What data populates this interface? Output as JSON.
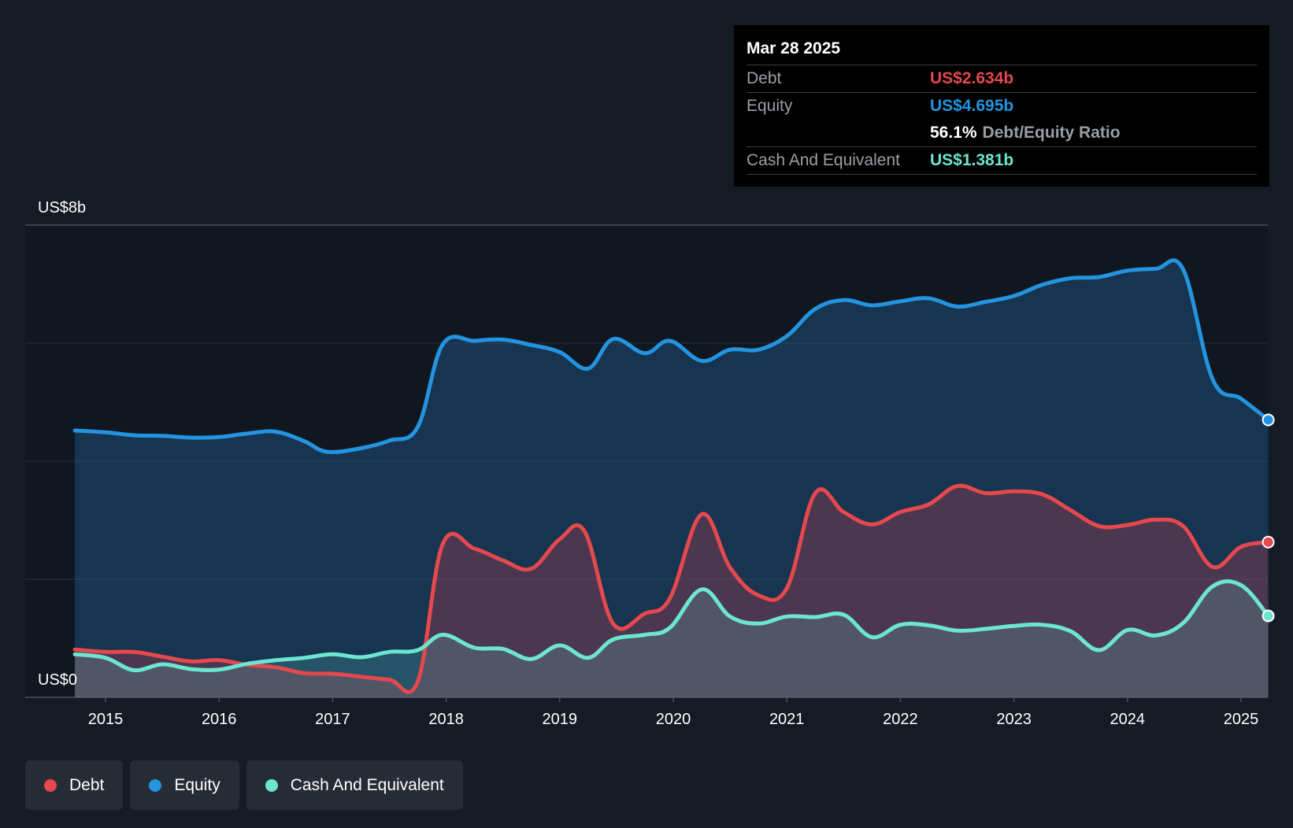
{
  "tooltip": {
    "date": "Mar 28 2025",
    "rows": [
      {
        "label": "Debt",
        "value": "US$2.634b",
        "color": "#e5484d"
      },
      {
        "label": "Equity",
        "value": "US$4.695b",
        "color": "#2394df"
      },
      {
        "ratio_value": "56.1%",
        "ratio_label": "Debt/Equity Ratio"
      },
      {
        "label": "Cash And Equivalent",
        "value": "US$1.381b",
        "color": "#6ce5d1"
      }
    ]
  },
  "legend": [
    {
      "label": "Debt",
      "color": "#e5484d"
    },
    {
      "label": "Equity",
      "color": "#2394df"
    },
    {
      "label": "Cash And Equivalent",
      "color": "#6ce5d1"
    }
  ],
  "chart_data": {
    "type": "area",
    "title": "",
    "ylabel_top": "US$8b",
    "ylabel_bottom": "US$0",
    "ylim": [
      0,
      8
    ],
    "xlim": [
      2014.72,
      2025.24
    ],
    "x_ticks": [
      "2015",
      "2016",
      "2017",
      "2018",
      "2019",
      "2020",
      "2021",
      "2022",
      "2023",
      "2024",
      "2025"
    ],
    "series": [
      {
        "name": "Equity",
        "color": "#2394df",
        "x": [
          2014.73,
          2015.0,
          2015.25,
          2015.5,
          2015.75,
          2016.0,
          2016.25,
          2016.5,
          2016.75,
          2016.95,
          2017.25,
          2017.5,
          2017.75,
          2017.97,
          2018.25,
          2018.5,
          2018.75,
          2019.0,
          2019.25,
          2019.47,
          2019.75,
          2019.97,
          2020.25,
          2020.5,
          2020.75,
          2021.0,
          2021.25,
          2021.5,
          2021.75,
          2022.0,
          2022.25,
          2022.5,
          2022.75,
          2023.0,
          2023.25,
          2023.5,
          2023.75,
          2024.0,
          2024.25,
          2024.49,
          2024.75,
          2025.0,
          2025.24
        ],
        "values": [
          4.52,
          4.49,
          4.44,
          4.43,
          4.4,
          4.41,
          4.47,
          4.5,
          4.34,
          4.16,
          4.22,
          4.35,
          4.58,
          5.98,
          6.04,
          6.06,
          5.97,
          5.85,
          5.57,
          6.07,
          5.83,
          6.04,
          5.7,
          5.89,
          5.89,
          6.12,
          6.58,
          6.73,
          6.64,
          6.71,
          6.76,
          6.62,
          6.7,
          6.8,
          6.99,
          7.1,
          7.12,
          7.23,
          7.26,
          7.25,
          5.39,
          5.06,
          4.7
        ]
      },
      {
        "name": "Debt",
        "color": "#e5484d",
        "x": [
          2014.73,
          2015.0,
          2015.25,
          2015.5,
          2015.75,
          2016.0,
          2016.25,
          2016.5,
          2016.75,
          2017.0,
          2017.25,
          2017.5,
          2017.75,
          2017.97,
          2018.25,
          2018.5,
          2018.75,
          2019.0,
          2019.22,
          2019.47,
          2019.75,
          2019.97,
          2020.25,
          2020.5,
          2020.75,
          2021.0,
          2021.25,
          2021.5,
          2021.75,
          2022.0,
          2022.25,
          2022.5,
          2022.75,
          2023.0,
          2023.25,
          2023.5,
          2023.75,
          2024.0,
          2024.25,
          2024.49,
          2024.75,
          2025.0,
          2025.24
        ],
        "values": [
          0.81,
          0.77,
          0.77,
          0.69,
          0.61,
          0.63,
          0.55,
          0.51,
          0.41,
          0.4,
          0.35,
          0.3,
          0.27,
          2.6,
          2.52,
          2.32,
          2.18,
          2.68,
          2.81,
          1.25,
          1.42,
          1.68,
          3.1,
          2.2,
          1.73,
          1.85,
          3.46,
          3.14,
          2.93,
          3.14,
          3.27,
          3.58,
          3.46,
          3.49,
          3.44,
          3.17,
          2.9,
          2.92,
          3.01,
          2.9,
          2.21,
          2.55,
          2.63
        ]
      },
      {
        "name": "Cash And Equivalent",
        "color": "#6ce5d1",
        "x": [
          2014.73,
          2015.0,
          2015.25,
          2015.5,
          2015.75,
          2016.0,
          2016.25,
          2016.5,
          2016.75,
          2017.0,
          2017.25,
          2017.5,
          2017.75,
          2017.97,
          2018.25,
          2018.5,
          2018.75,
          2019.0,
          2019.25,
          2019.47,
          2019.75,
          2019.97,
          2020.25,
          2020.5,
          2020.75,
          2021.0,
          2021.25,
          2021.5,
          2021.75,
          2022.0,
          2022.25,
          2022.5,
          2022.75,
          2023.0,
          2023.25,
          2023.5,
          2023.75,
          2024.0,
          2024.25,
          2024.49,
          2024.75,
          2025.0,
          2025.24
        ],
        "values": [
          0.73,
          0.67,
          0.46,
          0.56,
          0.48,
          0.47,
          0.57,
          0.63,
          0.67,
          0.73,
          0.68,
          0.77,
          0.8,
          1.06,
          0.84,
          0.82,
          0.65,
          0.88,
          0.67,
          0.98,
          1.06,
          1.18,
          1.83,
          1.37,
          1.25,
          1.37,
          1.36,
          1.4,
          1.02,
          1.23,
          1.22,
          1.13,
          1.16,
          1.21,
          1.23,
          1.12,
          0.8,
          1.14,
          1.05,
          1.26,
          1.88,
          1.9,
          1.38
        ]
      }
    ]
  }
}
